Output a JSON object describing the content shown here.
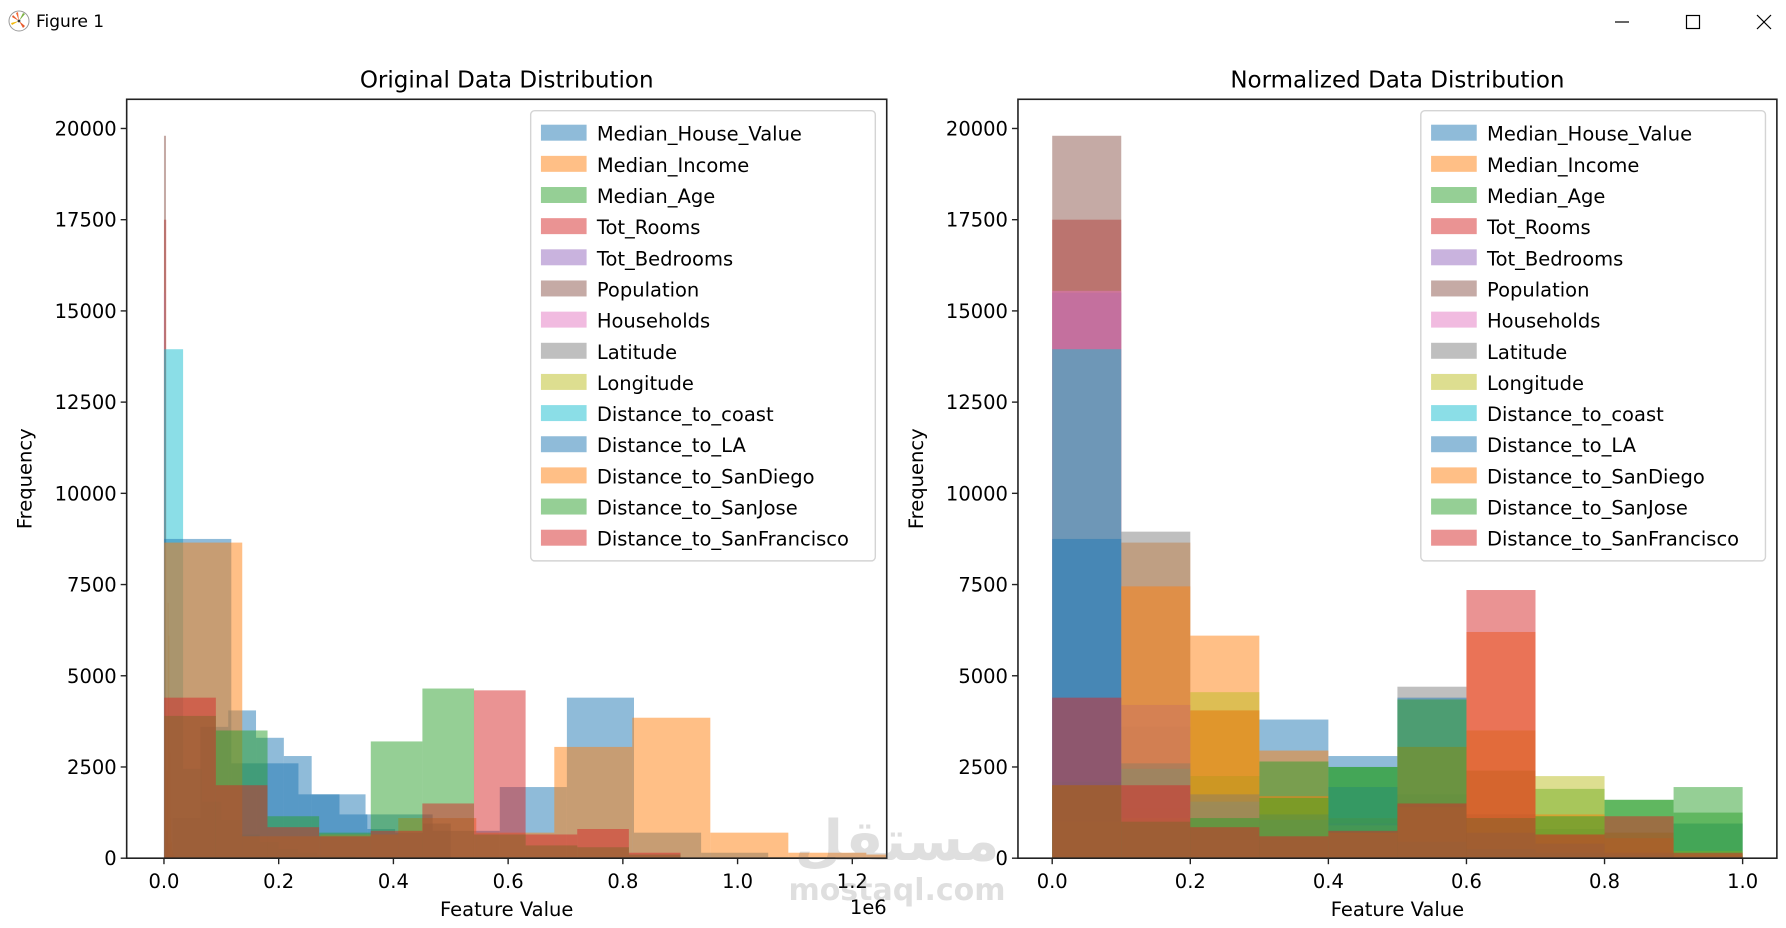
{
  "window": {
    "title": "Figure 1",
    "buttons": {
      "minimize": "minimize",
      "maximize": "maximize",
      "close": "close"
    }
  },
  "watermark": {
    "text_arabic": "مستقل",
    "text_latin": "mostaql.com"
  },
  "colors": {
    "Median_House_Value": "#1f77b4",
    "Median_Income": "#ff7f0e",
    "Median_Age": "#2ca02c",
    "Tot_Rooms": "#d62728",
    "Tot_Bedrooms": "#9467bd",
    "Population": "#8c564b",
    "Households": "#e377c2",
    "Latitude": "#7f7f7f",
    "Longitude": "#bcbd22",
    "Distance_to_coast": "#17becf",
    "Distance_to_LA": "#1f77b4",
    "Distance_to_SanDiego": "#ff7f0e",
    "Distance_to_SanJose": "#2ca02c",
    "Distance_to_SanFrancisco": "#d62728"
  },
  "chart_data": [
    {
      "type": "bar",
      "subtype": "histogram-overlay",
      "title": "Original Data Distribution",
      "xlabel": "Feature Value",
      "ylabel": "Frequency",
      "x_offset_label": "1e6",
      "xlim": [
        -65000,
        1260000
      ],
      "ylim": [
        0,
        20800
      ],
      "xticks": [
        0,
        200000,
        400000,
        600000,
        800000,
        1000000,
        1200000
      ],
      "xtick_labels": [
        "0.0",
        "0.2",
        "0.4",
        "0.6",
        "0.8",
        "1.0",
        "1.2"
      ],
      "yticks": [
        0,
        2500,
        5000,
        7500,
        10000,
        12500,
        15000,
        17500,
        20000
      ],
      "ytick_labels": [
        "0",
        "2500",
        "5000",
        "7500",
        "10000",
        "12500",
        "15000",
        "17500",
        "20000"
      ],
      "alpha": 0.5,
      "legend": {
        "location": "top-right"
      },
      "series": [
        {
          "name": "Median_House_Value",
          "bin_start": 15000,
          "bin_width": 48500,
          "counts": [
            1100,
            3600,
            4050,
            3300,
            2800,
            1750,
            1200,
            800,
            700,
            950
          ]
        },
        {
          "name": "Median_Income",
          "bin_start": 5000,
          "bin_width": 1500,
          "counts": [
            2200,
            7000,
            6100,
            2900,
            1100,
            450,
            220,
            120,
            60,
            60
          ]
        },
        {
          "name": "Median_Age",
          "bin_start": 1,
          "bin_width": 5.1,
          "counts": [
            700,
            1400,
            2100,
            2600,
            3400,
            2500,
            2400,
            2000,
            1700,
            1300
          ]
        },
        {
          "name": "Tot_Rooms",
          "bin_start": 2,
          "bin_width": 3930,
          "counts": [
            17500,
            2400,
            400,
            100,
            40,
            20,
            10,
            5,
            2,
            2
          ]
        },
        {
          "name": "Tot_Bedrooms",
          "bin_start": 1,
          "bin_width": 645,
          "counts": [
            15500,
            4500,
            500,
            80,
            20,
            10,
            5,
            2,
            1,
            1
          ]
        },
        {
          "name": "Population",
          "bin_start": 3,
          "bin_width": 3568,
          "counts": [
            19800,
            750,
            60,
            15,
            5,
            2,
            1,
            0,
            0,
            1
          ]
        },
        {
          "name": "Households",
          "bin_start": 1,
          "bin_width": 608,
          "counts": [
            15500,
            4500,
            500,
            80,
            20,
            10,
            5,
            2,
            1,
            1
          ]
        },
        {
          "name": "Latitude",
          "bin_start": 32.5,
          "bin_width": 0.94,
          "counts": [
            2100,
            8950,
            1450,
            750,
            950,
            4700,
            1050,
            650,
            200,
            100
          ]
        },
        {
          "name": "Longitude",
          "bin_start": -124.3,
          "bin_width": 1.0,
          "counts": [
            1000,
            1100,
            1500,
            3500,
            2400,
            900,
            1400,
            4550,
            3700,
            200
          ]
        },
        {
          "name": "Distance_to_coast",
          "bin_start": 0,
          "bin_width": 33368,
          "counts": [
            13950,
            2450,
            1550,
            1050,
            650,
            450,
            250,
            150,
            80,
            60
          ]
        },
        {
          "name": "Distance_to_LA",
          "bin_start": 420,
          "bin_width": 117000,
          "counts": [
            8750,
            2600,
            1750,
            1200,
            750,
            1950,
            4400,
            700,
            150,
            30
          ]
        },
        {
          "name": "Distance_to_SanDiego",
          "bin_start": 480,
          "bin_width": 136000,
          "counts": [
            8650,
            600,
            650,
            1100,
            700,
            3050,
            3850,
            700,
            150,
            100
          ]
        },
        {
          "name": "Distance_to_SanJose",
          "bin_start": 570,
          "bin_width": 90000,
          "counts": [
            3900,
            3500,
            1150,
            700,
            3200,
            4650,
            650,
            350,
            300,
            100
          ]
        },
        {
          "name": "Distance_to_SanFrancisco",
          "bin_start": 460,
          "bin_width": 90000,
          "counts": [
            4400,
            2000,
            850,
            600,
            750,
            1500,
            4600,
            650,
            800,
            150
          ]
        }
      ]
    },
    {
      "type": "bar",
      "subtype": "histogram-overlay",
      "title": "Normalized Data Distribution",
      "xlabel": "Feature Value",
      "ylabel": "Frequency",
      "xlim": [
        -0.0496,
        1.0496
      ],
      "ylim": [
        0,
        20800
      ],
      "xticks": [
        0,
        0.2,
        0.4,
        0.6,
        0.8,
        1.0
      ],
      "xtick_labels": [
        "0.0",
        "0.2",
        "0.4",
        "0.6",
        "0.8",
        "1.0"
      ],
      "yticks": [
        0,
        2500,
        5000,
        7500,
        10000,
        12500,
        15000,
        17500,
        20000
      ],
      "ytick_labels": [
        "0",
        "2500",
        "5000",
        "7500",
        "10000",
        "12500",
        "15000",
        "17500",
        "20000"
      ],
      "alpha": 0.5,
      "legend": {
        "location": "top-right"
      },
      "bin_edges": [
        0,
        0.1,
        0.2,
        0.3,
        0.4,
        0.5,
        0.6,
        0.7,
        0.8,
        0.9,
        1.0
      ],
      "series": [
        {
          "name": "Median_House_Value",
          "counts": [
            1100,
            3600,
            4050,
            3800,
            2800,
            1750,
            1200,
            800,
            700,
            950
          ]
        },
        {
          "name": "Median_Income",
          "counts": [
            2000,
            8650,
            6100,
            2950,
            1100,
            450,
            220,
            120,
            60,
            60
          ]
        },
        {
          "name": "Median_Age",
          "counts": [
            700,
            1400,
            2250,
            2650,
            2500,
            3050,
            2400,
            1900,
            1600,
            1950
          ]
        },
        {
          "name": "Tot_Rooms",
          "counts": [
            17500,
            2400,
            400,
            100,
            40,
            20,
            10,
            5,
            2,
            2
          ]
        },
        {
          "name": "Tot_Bedrooms",
          "counts": [
            15500,
            4200,
            500,
            80,
            20,
            10,
            5,
            2,
            1,
            1
          ]
        },
        {
          "name": "Population",
          "counts": [
            19800,
            750,
            60,
            15,
            5,
            2,
            1,
            0,
            0,
            1
          ]
        },
        {
          "name": "Households",
          "counts": [
            15550,
            4200,
            500,
            80,
            20,
            10,
            5,
            2,
            1,
            1
          ]
        },
        {
          "name": "Latitude",
          "counts": [
            2100,
            8950,
            1450,
            750,
            950,
            4700,
            1050,
            650,
            200,
            100
          ]
        },
        {
          "name": "Longitude",
          "counts": [
            1000,
            1100,
            4550,
            1650,
            900,
            1400,
            3500,
            2250,
            700,
            200
          ]
        },
        {
          "name": "Distance_to_coast",
          "counts": [
            13950,
            2450,
            1550,
            1050,
            650,
            450,
            250,
            150,
            80,
            60
          ]
        },
        {
          "name": "Distance_to_LA",
          "counts": [
            8750,
            2600,
            1750,
            1200,
            1950,
            4400,
            700,
            400,
            150,
            30
          ]
        },
        {
          "name": "Distance_to_SanDiego",
          "counts": [
            2000,
            7450,
            4050,
            1700,
            700,
            3050,
            6200,
            1200,
            550,
            100
          ]
        },
        {
          "name": "Distance_to_SanJose",
          "counts": [
            2000,
            1000,
            1100,
            1650,
            2500,
            4350,
            1100,
            1150,
            1600,
            1250
          ]
        },
        {
          "name": "Distance_to_SanFrancisco",
          "counts": [
            4400,
            2000,
            850,
            600,
            750,
            1500,
            7350,
            650,
            1150,
            150
          ]
        }
      ]
    }
  ]
}
